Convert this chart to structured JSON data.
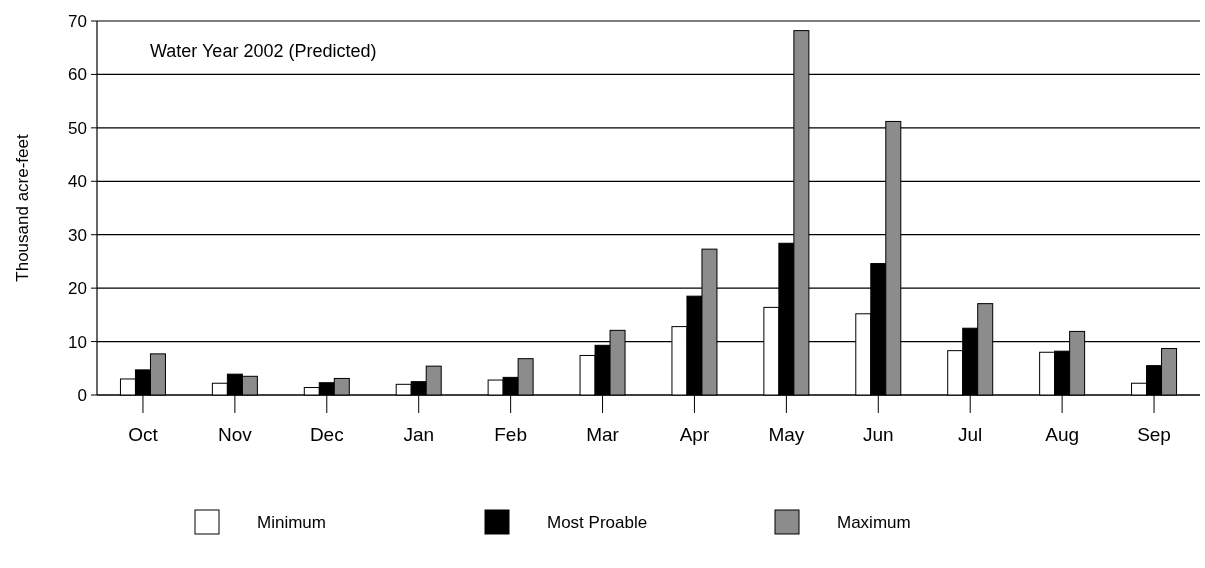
{
  "chart_data": {
    "type": "bar",
    "title": "Water Year 2002 (Predicted)",
    "ylabel": "Thousand acre-feet",
    "categories": [
      "Oct",
      "Nov",
      "Dec",
      "Jan",
      "Feb",
      "Mar",
      "Apr",
      "May",
      "Jun",
      "Jul",
      "Aug",
      "Sep"
    ],
    "series": [
      {
        "name": "Minimum",
        "color": "#ffffff",
        "values": [
          3,
          2.2,
          1.4,
          2,
          2.8,
          7.4,
          12.8,
          16.4,
          15.2,
          8.3,
          8,
          2.2
        ]
      },
      {
        "name": "Most Proable",
        "color": "#000000",
        "values": [
          4.7,
          3.9,
          2.3,
          2.5,
          3.3,
          9.3,
          18.5,
          28.4,
          24.6,
          12.5,
          8.2,
          5.5
        ]
      },
      {
        "name": "Maximum",
        "color": "#8c8c8c",
        "values": [
          7.7,
          3.5,
          3.1,
          5.4,
          6.8,
          12.1,
          27.3,
          68.2,
          51.2,
          17.1,
          11.9,
          8.7
        ]
      }
    ],
    "ylim": [
      0,
      70
    ],
    "yticks": [
      0,
      10,
      20,
      30,
      40,
      50,
      60,
      70
    ],
    "grid": "y",
    "legend": "bottom"
  }
}
